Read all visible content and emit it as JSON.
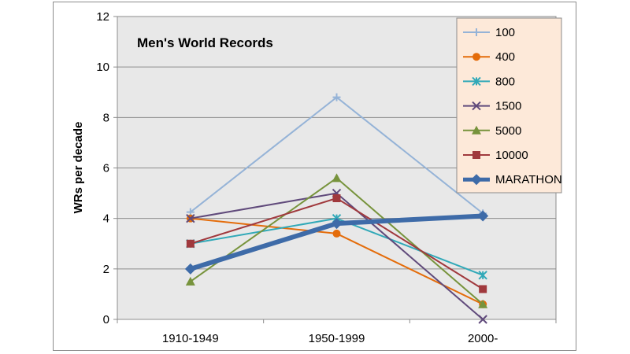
{
  "chart_data": {
    "type": "line",
    "title": "Men's World Records",
    "ylabel": "WRs per decade",
    "xlabel": "",
    "categories": [
      "1910-1949",
      "1950-1999",
      "2000-"
    ],
    "ylim": [
      0,
      12
    ],
    "yticks": [
      0,
      2,
      4,
      6,
      8,
      10,
      12
    ],
    "grid": "horizontal",
    "legend_position": "right",
    "plot_background": "#e8e8e8",
    "legend_background": "#fde9d9",
    "series": [
      {
        "name": "100",
        "values": [
          4.25,
          8.8,
          4.2
        ],
        "color": "#95b3d7",
        "marker": "plus",
        "width": 2
      },
      {
        "name": "400",
        "values": [
          4.0,
          3.4,
          0.6
        ],
        "color": "#e46c0a",
        "marker": "circle",
        "width": 2
      },
      {
        "name": "800",
        "values": [
          3.0,
          4.0,
          1.75
        ],
        "color": "#31a9b8",
        "marker": "star",
        "width": 2
      },
      {
        "name": "1500",
        "values": [
          4.0,
          5.0,
          0.0
        ],
        "color": "#604a7b",
        "marker": "x",
        "width": 2
      },
      {
        "name": "5000",
        "values": [
          1.5,
          5.6,
          0.6
        ],
        "color": "#77933c",
        "marker": "triangle",
        "width": 2
      },
      {
        "name": "10000",
        "values": [
          3.0,
          4.8,
          1.2
        ],
        "color": "#a0393d",
        "marker": "square",
        "width": 2
      },
      {
        "name": "MARATHON",
        "values": [
          2.0,
          3.8,
          4.1
        ],
        "color": "#3e6ba8",
        "marker": "diamond",
        "width": 6
      }
    ]
  }
}
